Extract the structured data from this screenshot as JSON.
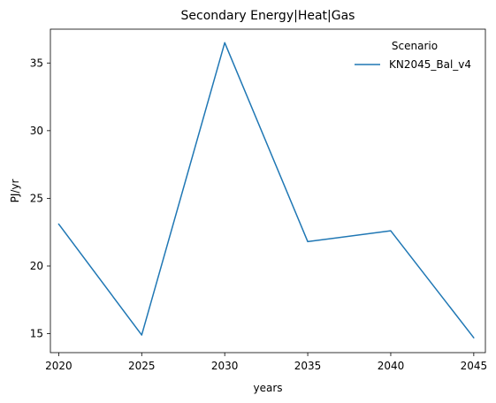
{
  "chart_data": {
    "type": "line",
    "title": "Secondary Energy|Heat|Gas",
    "xlabel": "years",
    "ylabel": "PJ/yr",
    "x": [
      2020,
      2025,
      2030,
      2035,
      2040,
      2045
    ],
    "xlim": [
      2019.5,
      2045.7
    ],
    "ylim": [
      13.6,
      37.5
    ],
    "x_ticks": [
      2020,
      2025,
      2030,
      2035,
      2040,
      2045
    ],
    "y_ticks": [
      15,
      20,
      25,
      30,
      35
    ],
    "grid": false,
    "legend": {
      "title": "Scenario",
      "placement": "top-right"
    },
    "series": [
      {
        "name": "KN2045_Bal_v4",
        "color": "#1f77b4",
        "values": [
          23.1,
          14.9,
          36.5,
          21.8,
          22.6,
          14.7
        ]
      }
    ]
  }
}
